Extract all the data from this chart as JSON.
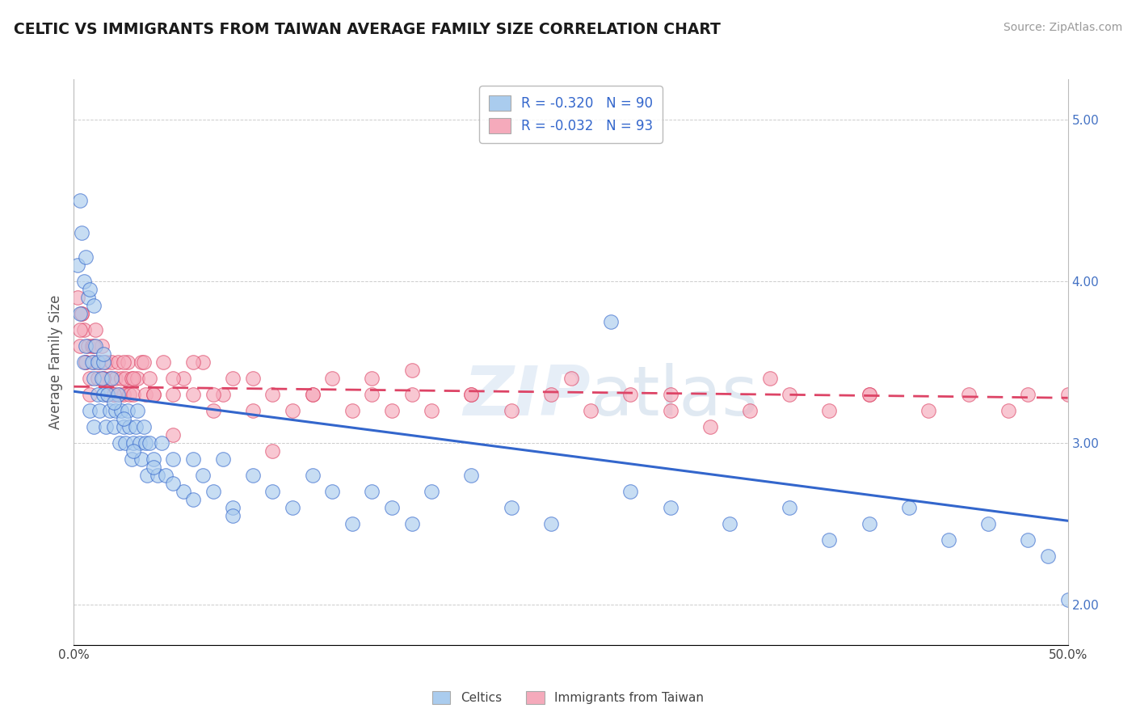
{
  "title": "CELTIC VS IMMIGRANTS FROM TAIWAN AVERAGE FAMILY SIZE CORRELATION CHART",
  "source": "Source: ZipAtlas.com",
  "ylabel": "Average Family Size",
  "x_range": [
    0.0,
    50.0
  ],
  "y_range": [
    1.75,
    5.25
  ],
  "legend1_label": "R = -0.320   N = 90",
  "legend2_label": "R = -0.032   N = 93",
  "legend1_face": "#aaccee",
  "legend2_face": "#f5aabb",
  "line1_color": "#3366cc",
  "line2_color": "#dd4466",
  "celtics_x": [
    0.3,
    0.4,
    0.5,
    0.6,
    0.7,
    0.8,
    0.9,
    1.0,
    1.0,
    1.1,
    1.2,
    1.2,
    1.3,
    1.4,
    1.5,
    1.5,
    1.6,
    1.7,
    1.8,
    1.9,
    2.0,
    2.1,
    2.2,
    2.3,
    2.4,
    2.5,
    2.6,
    2.7,
    2.8,
    2.9,
    3.0,
    3.1,
    3.2,
    3.3,
    3.4,
    3.5,
    3.6,
    3.7,
    3.8,
    4.0,
    4.2,
    4.4,
    4.6,
    5.0,
    5.5,
    6.0,
    6.5,
    7.0,
    7.5,
    8.0,
    9.0,
    10.0,
    11.0,
    12.0,
    13.0,
    14.0,
    15.0,
    16.0,
    17.0,
    18.0,
    20.0,
    22.0,
    24.0,
    27.0,
    28.0,
    30.0,
    33.0,
    36.0,
    38.0,
    40.0,
    42.0,
    44.0,
    46.0,
    48.0,
    49.0,
    50.0,
    0.2,
    0.3,
    0.5,
    0.6,
    0.8,
    1.0,
    1.5,
    2.0,
    2.5,
    3.0,
    4.0,
    5.0,
    6.0,
    8.0
  ],
  "celtics_y": [
    3.8,
    4.3,
    3.5,
    3.6,
    3.9,
    3.2,
    3.5,
    3.4,
    3.1,
    3.6,
    3.3,
    3.5,
    3.2,
    3.4,
    3.3,
    3.5,
    3.1,
    3.3,
    3.2,
    3.4,
    3.1,
    3.2,
    3.3,
    3.0,
    3.2,
    3.1,
    3.0,
    3.2,
    3.1,
    2.9,
    3.0,
    3.1,
    3.2,
    3.0,
    2.9,
    3.1,
    3.0,
    2.8,
    3.0,
    2.9,
    2.8,
    3.0,
    2.8,
    2.9,
    2.7,
    2.9,
    2.8,
    2.7,
    2.9,
    2.6,
    2.8,
    2.7,
    2.6,
    2.8,
    2.7,
    2.5,
    2.7,
    2.6,
    2.5,
    2.7,
    2.8,
    2.6,
    2.5,
    3.75,
    2.7,
    2.6,
    2.5,
    2.6,
    2.4,
    2.5,
    2.6,
    2.4,
    2.5,
    2.4,
    2.3,
    2.03,
    4.1,
    4.5,
    4.0,
    4.15,
    3.95,
    3.85,
    3.55,
    3.25,
    3.15,
    2.95,
    2.85,
    2.75,
    2.65,
    2.55
  ],
  "taiwan_x": [
    0.2,
    0.3,
    0.4,
    0.5,
    0.6,
    0.7,
    0.8,
    0.9,
    1.0,
    1.1,
    1.2,
    1.3,
    1.4,
    1.5,
    1.6,
    1.7,
    1.8,
    1.9,
    2.0,
    2.1,
    2.2,
    2.3,
    2.4,
    2.5,
    2.6,
    2.7,
    2.8,
    2.9,
    3.0,
    3.2,
    3.4,
    3.6,
    3.8,
    4.0,
    4.5,
    5.0,
    5.5,
    6.0,
    6.5,
    7.0,
    7.5,
    8.0,
    9.0,
    10.0,
    11.0,
    12.0,
    13.0,
    14.0,
    15.0,
    16.0,
    17.0,
    18.0,
    20.0,
    22.0,
    24.0,
    26.0,
    28.0,
    30.0,
    32.0,
    34.0,
    36.0,
    38.0,
    40.0,
    43.0,
    45.0,
    47.0,
    48.0,
    50.0,
    0.3,
    0.4,
    0.6,
    0.8,
    1.0,
    1.5,
    2.0,
    2.5,
    3.0,
    3.5,
    4.0,
    5.0,
    6.0,
    7.0,
    9.0,
    12.0,
    15.0,
    20.0,
    25.0,
    30.0,
    35.0,
    40.0,
    10.0,
    17.0,
    5.0
  ],
  "taiwan_y": [
    3.9,
    3.6,
    3.8,
    3.7,
    3.5,
    3.6,
    3.4,
    3.6,
    3.5,
    3.7,
    3.4,
    3.5,
    3.6,
    3.4,
    3.5,
    3.3,
    3.4,
    3.5,
    3.3,
    3.4,
    3.5,
    3.3,
    3.4,
    3.3,
    3.4,
    3.5,
    3.3,
    3.4,
    3.3,
    3.4,
    3.5,
    3.3,
    3.4,
    3.3,
    3.5,
    3.3,
    3.4,
    3.3,
    3.5,
    3.2,
    3.3,
    3.4,
    3.2,
    3.3,
    3.2,
    3.3,
    3.4,
    3.2,
    3.3,
    3.2,
    3.3,
    3.2,
    3.3,
    3.2,
    3.3,
    3.2,
    3.3,
    3.2,
    3.1,
    3.2,
    3.3,
    3.2,
    3.3,
    3.2,
    3.3,
    3.2,
    3.3,
    3.3,
    3.7,
    3.8,
    3.5,
    3.3,
    3.6,
    3.4,
    3.3,
    3.5,
    3.4,
    3.5,
    3.3,
    3.4,
    3.5,
    3.3,
    3.4,
    3.3,
    3.4,
    3.3,
    3.4,
    3.3,
    3.4,
    3.3,
    2.95,
    3.45,
    3.05
  ],
  "trendline_blue_start_y": 3.32,
  "trendline_blue_end_y": 2.52,
  "trendline_pink_start_y": 3.35,
  "trendline_pink_end_y": 3.28
}
